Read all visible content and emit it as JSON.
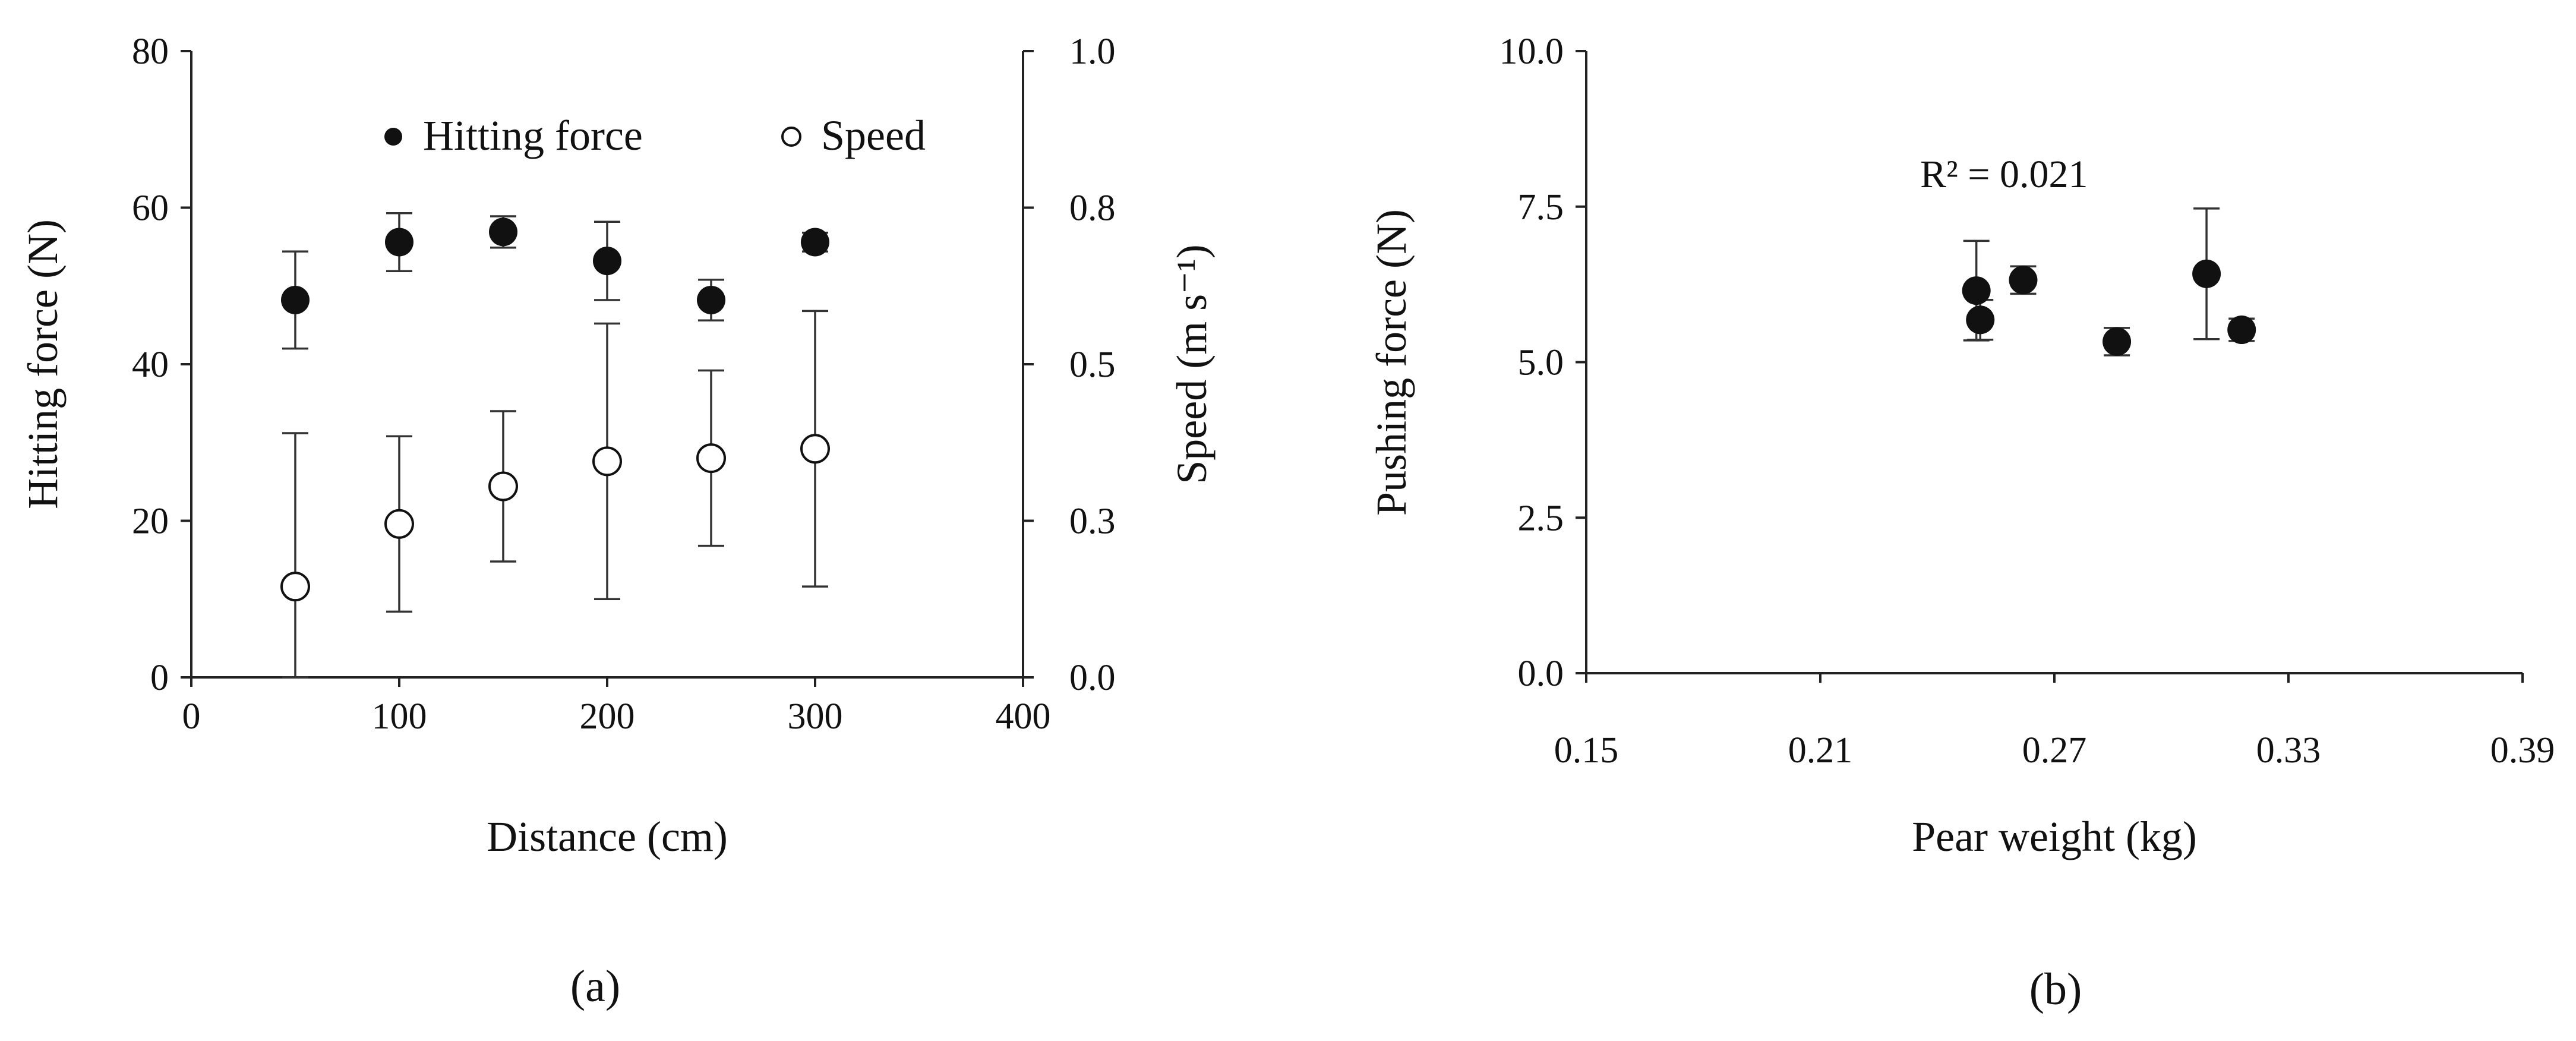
{
  "chart_data": [
    {
      "panel": "(a)",
      "type": "scatter",
      "xlabel": "Distance (cm)",
      "ylabel": "Hitting force (N)",
      "y2label": "Speed (m s⁻¹)",
      "xlim": [
        0,
        400
      ],
      "ylim": [
        0,
        80
      ],
      "y2lim": [
        0.0,
        1.0
      ],
      "xticks": [
        "0",
        "100",
        "200",
        "300",
        "400"
      ],
      "yticks": [
        "0",
        "20",
        "40",
        "60",
        "80"
      ],
      "y2ticks": [
        "0.0",
        "0.3",
        "0.5",
        "0.8",
        "1.0"
      ],
      "grid": false,
      "legend": "top",
      "series": [
        {
          "name": "Hitting force",
          "axis": "left",
          "marker": "filled-circle",
          "x": [
            50,
            100,
            150,
            200,
            250,
            300
          ],
          "y": [
            48.2,
            55.6,
            56.9,
            53.2,
            48.2,
            55.6
          ],
          "err": [
            6.2,
            3.7,
            2.0,
            5.0,
            2.6,
            1.2
          ]
        },
        {
          "name": "Speed",
          "axis": "right",
          "marker": "open-circle",
          "x": [
            50,
            100,
            150,
            200,
            250,
            300
          ],
          "y": [
            0.145,
            0.245,
            0.305,
            0.345,
            0.35,
            0.365
          ],
          "err": [
            0.245,
            0.14,
            0.12,
            0.22,
            0.14,
            0.22
          ]
        }
      ]
    },
    {
      "panel": "(b)",
      "type": "scatter",
      "xlabel": "Pear weight (kg)",
      "ylabel": "Pushing force (N)",
      "xlim": [
        0.15,
        0.39
      ],
      "ylim": [
        0.0,
        10.0
      ],
      "xticks": [
        "0.15",
        "0.21",
        "0.27",
        "0.33",
        "0.39"
      ],
      "yticks": [
        "0.0",
        "2.5",
        "5.0",
        "7.5",
        "10.0"
      ],
      "grid": false,
      "annotation": "R² = 0.021",
      "series": [
        {
          "marker": "filled-circle",
          "x": [
            0.25,
            0.251,
            0.262,
            0.286,
            0.309,
            0.318
          ],
          "y": [
            6.15,
            5.68,
            6.32,
            5.33,
            6.42,
            5.52
          ],
          "err": [
            0.8,
            0.32,
            0.22,
            0.22,
            1.05,
            0.18
          ]
        }
      ]
    }
  ]
}
